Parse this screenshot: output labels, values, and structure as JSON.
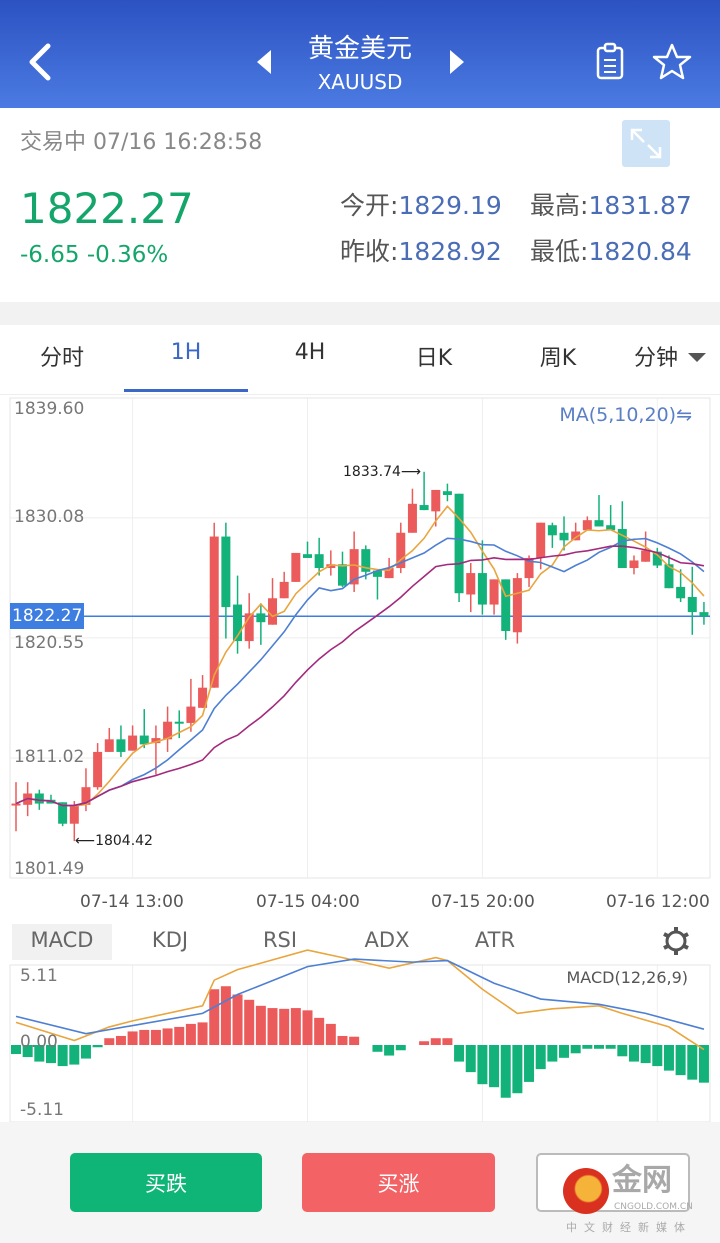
{
  "header": {
    "title": "黄金美元",
    "symbol": "XAUUSD",
    "back_icon": "chevron-left-icon",
    "prev_icon": "triangle-left-icon",
    "next_icon": "triangle-right-icon",
    "notes_icon": "clipboard-icon",
    "favorite_icon": "star-icon"
  },
  "quote": {
    "status": "交易中 07/16 16:28:58",
    "price": "1822.27",
    "change": "-6.65 -0.36%",
    "open_label": "今开:",
    "open": "1829.19",
    "high_label": "最高:",
    "high": "1831.87",
    "prev_close_label": "昨收:",
    "prev_close": "1828.92",
    "low_label": "最低:",
    "low": "1820.84",
    "expand_icon": "expand-icon"
  },
  "tabs": [
    {
      "label": "分时"
    },
    {
      "label": "1H",
      "active": true
    },
    {
      "label": "4H"
    },
    {
      "label": "日K"
    },
    {
      "label": "周K"
    },
    {
      "label": "分钟",
      "dropdown": true
    }
  ],
  "colors": {
    "up": "#eb5b5b",
    "down": "#13b27a",
    "ma5": "#e9a53e",
    "ma10": "#4d7fd2",
    "ma20": "#a3297d",
    "accent": "#3a67c8",
    "price_line": "#3d7ee0"
  },
  "chart_data": [
    {
      "type": "candlestick",
      "indicator_label": "MA(5,10,20)⇋",
      "y_ticks": [
        "1839.60",
        "1830.08",
        "1820.55",
        "1811.02",
        "1801.49"
      ],
      "ylim": [
        1801.49,
        1839.6
      ],
      "x_ticks": [
        {
          "index": 10,
          "label": "07-14 13:00"
        },
        {
          "index": 25,
          "label": "07-15 04:00"
        },
        {
          "index": 40,
          "label": "07-15 20:00"
        },
        {
          "index": 55,
          "label": "07-16 12:00"
        }
      ],
      "current_price": "1822.27",
      "high_marker": {
        "index": 35,
        "label": "1833.74⟶"
      },
      "low_marker": {
        "index": 5,
        "label": "⟵1804.42"
      },
      "series": [
        "MA5",
        "MA10",
        "MA20"
      ],
      "ohlc": [
        [
          1807.3,
          1809.1,
          1805.2,
          1807.4
        ],
        [
          1807.3,
          1809.1,
          1806.4,
          1808.2
        ],
        [
          1808.2,
          1808.5,
          1806.9,
          1807.4
        ],
        [
          1807.7,
          1808.1,
          1807.4,
          1807.4
        ],
        [
          1807.5,
          1807.5,
          1805.6,
          1805.8
        ],
        [
          1805.8,
          1807.6,
          1804.42,
          1807.3
        ],
        [
          1807.3,
          1810.2,
          1806.8,
          1808.7
        ],
        [
          1808.7,
          1812.2,
          1808.5,
          1811.5
        ],
        [
          1811.5,
          1813.4,
          1811.5,
          1812.5
        ],
        [
          1812.5,
          1813.6,
          1811.1,
          1811.5
        ],
        [
          1811.6,
          1813.6,
          1811.6,
          1812.8
        ],
        [
          1812.8,
          1814.9,
          1811.8,
          1812.1
        ],
        [
          1812.2,
          1813.6,
          1809.7,
          1812.6
        ],
        [
          1812.5,
          1815.1,
          1811.5,
          1813.9
        ],
        [
          1813.9,
          1814.8,
          1812.6,
          1813.8
        ],
        [
          1813.8,
          1817.3,
          1813.1,
          1815.1
        ],
        [
          1815.0,
          1817.6,
          1815.0,
          1816.6
        ],
        [
          1816.6,
          1829.7,
          1816.6,
          1828.6
        ],
        [
          1828.6,
          1829.7,
          1820.5,
          1823.0
        ],
        [
          1823.2,
          1825.5,
          1819.3,
          1820.3
        ],
        [
          1820.3,
          1824.1,
          1819.7,
          1822.5
        ],
        [
          1822.5,
          1823.3,
          1820.0,
          1821.8
        ],
        [
          1821.6,
          1825.3,
          1821.6,
          1823.7
        ],
        [
          1823.7,
          1825.8,
          1823.7,
          1825.0
        ],
        [
          1825.0,
          1827.3,
          1825.0,
          1827.3
        ],
        [
          1827.2,
          1828.2,
          1826.9,
          1826.9
        ],
        [
          1827.2,
          1828.5,
          1825.5,
          1826.1
        ],
        [
          1826.1,
          1827.5,
          1825.5,
          1826.4
        ],
        [
          1826.4,
          1827.4,
          1824.6,
          1824.7
        ],
        [
          1824.8,
          1829.0,
          1824.2,
          1827.6
        ],
        [
          1827.6,
          1827.9,
          1825.2,
          1825.8
        ],
        [
          1825.9,
          1825.9,
          1823.6,
          1825.4
        ],
        [
          1825.3,
          1826.9,
          1825.3,
          1826.1
        ],
        [
          1826.1,
          1829.7,
          1825.7,
          1828.9
        ],
        [
          1828.9,
          1832.4,
          1828.9,
          1831.2
        ],
        [
          1831.1,
          1833.74,
          1830.7,
          1830.7
        ],
        [
          1830.6,
          1832.3,
          1829.4,
          1832.3
        ],
        [
          1832.2,
          1832.8,
          1831.4,
          1831.9
        ],
        [
          1832.0,
          1832.0,
          1823.4,
          1824.1
        ],
        [
          1824.0,
          1826.5,
          1822.6,
          1825.7
        ],
        [
          1825.7,
          1828.3,
          1822.4,
          1823.2
        ],
        [
          1823.2,
          1825.2,
          1822.4,
          1825.2
        ],
        [
          1825.2,
          1825.2,
          1820.4,
          1821.1
        ],
        [
          1821.0,
          1825.7,
          1820.1,
          1825.3
        ],
        [
          1825.3,
          1827.1,
          1824.6,
          1826.9
        ],
        [
          1826.9,
          1829.7,
          1826.0,
          1829.7
        ],
        [
          1829.5,
          1829.7,
          1827.7,
          1828.7
        ],
        [
          1828.9,
          1830.2,
          1827.5,
          1828.3
        ],
        [
          1828.3,
          1829.7,
          1828.3,
          1829.0
        ],
        [
          1829.1,
          1830.2,
          1829.1,
          1829.9
        ],
        [
          1829.9,
          1831.9,
          1829.4,
          1829.4
        ],
        [
          1829.5,
          1831.1,
          1829.1,
          1829.1
        ],
        [
          1829.2,
          1831.4,
          1826.1,
          1826.1
        ],
        [
          1826.1,
          1827.1,
          1825.6,
          1826.7
        ],
        [
          1826.6,
          1829.0,
          1826.6,
          1827.5
        ],
        [
          1827.4,
          1827.7,
          1826.1,
          1826.3
        ],
        [
          1826.4,
          1827.1,
          1824.5,
          1824.5
        ],
        [
          1824.6,
          1826.0,
          1823.4,
          1823.7
        ],
        [
          1823.8,
          1826.2,
          1820.8,
          1822.6
        ],
        [
          1822.6,
          1823.4,
          1821.6,
          1822.27
        ]
      ]
    },
    {
      "type": "bar",
      "indicator_label": "MACD(12,26,9)",
      "y_ticks": [
        "5.11",
        "0.00",
        "-5.11"
      ],
      "ylim": [
        -5.11,
        5.11
      ],
      "histogram": [
        -0.6,
        -0.8,
        -1.1,
        -1.2,
        -1.4,
        -1.3,
        -0.9,
        -0.15,
        0.45,
        0.6,
        0.9,
        1.0,
        1.0,
        1.1,
        1.2,
        1.4,
        1.5,
        3.7,
        3.9,
        3.35,
        3.0,
        2.6,
        2.45,
        2.4,
        2.45,
        2.3,
        1.8,
        1.4,
        0.6,
        0.55,
        0,
        -0.45,
        -0.7,
        -0.35,
        0,
        0.25,
        0.45,
        0.45,
        -1.1,
        -1.8,
        -2.6,
        -2.8,
        -3.5,
        -3.2,
        -2.45,
        -1.6,
        -1.1,
        -0.85,
        -0.55,
        -0.25,
        -0.25,
        -0.25,
        -0.75,
        -1.1,
        -1.2,
        -1.4,
        -1.7,
        -2.0,
        -2.3,
        -2.5
      ],
      "dif": [
        [
          0,
          1.5
        ],
        [
          5,
          0.3
        ],
        [
          8,
          1.2
        ],
        [
          10,
          1.6
        ],
        [
          16,
          2.6
        ],
        [
          17,
          4.3
        ],
        [
          19,
          5.0
        ],
        [
          25,
          6.3
        ],
        [
          28,
          5.8
        ],
        [
          32,
          5.1
        ],
        [
          36,
          5.8
        ],
        [
          37,
          5.6
        ],
        [
          40,
          3.7
        ],
        [
          43,
          2.1
        ],
        [
          46,
          2.4
        ],
        [
          50,
          2.6
        ],
        [
          52,
          2.1
        ],
        [
          56,
          1.2
        ],
        [
          59,
          -0.3
        ]
      ],
      "dea": [
        [
          0,
          1.9
        ],
        [
          6,
          0.75
        ],
        [
          16,
          2.1
        ],
        [
          19,
          3.35
        ],
        [
          25,
          5.2
        ],
        [
          29,
          5.7
        ],
        [
          34,
          5.5
        ],
        [
          37,
          5.6
        ],
        [
          41,
          4.1
        ],
        [
          45,
          3.05
        ],
        [
          50,
          2.7
        ],
        [
          54,
          2.1
        ],
        [
          59,
          1.05
        ]
      ]
    }
  ],
  "indicator_tabs": [
    {
      "label": "MACD",
      "active": true
    },
    {
      "label": "KDJ"
    },
    {
      "label": "RSI"
    },
    {
      "label": "ADX"
    },
    {
      "label": "ATR"
    }
  ],
  "settings_icon": "gear-icon",
  "actions": {
    "sell": "买跌",
    "buy": "买涨"
  },
  "watermark": {
    "name": "金网",
    "domain": "CNGOLD.COM.CN",
    "slogan": "中文财经新媒体"
  }
}
